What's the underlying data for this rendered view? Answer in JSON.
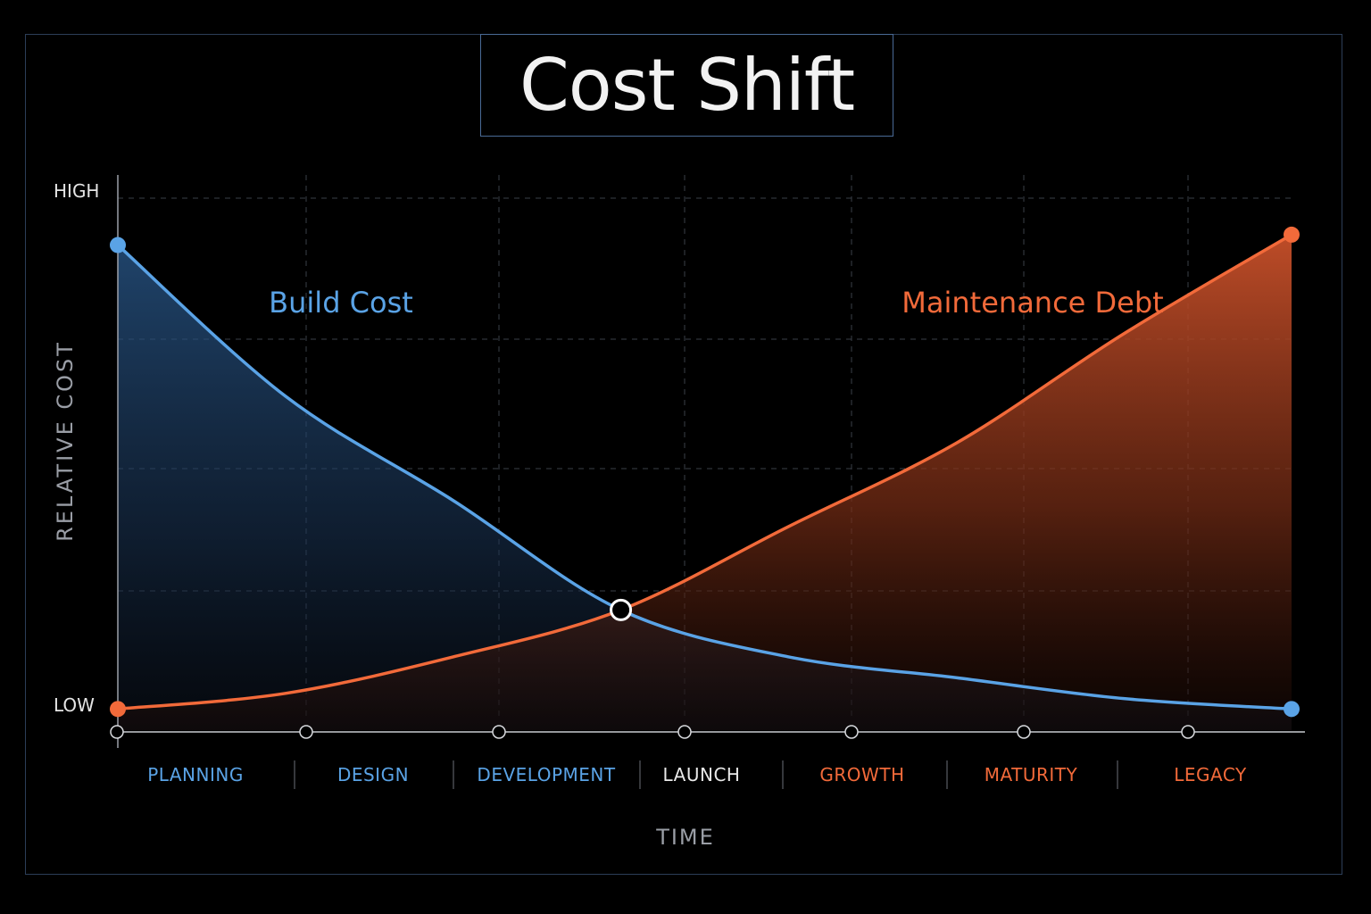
{
  "chart_data": {
    "type": "area",
    "title": "Cost Shift",
    "xlabel": "TIME",
    "ylabel": "RELATIVE COST",
    "y_tick_labels": [
      "HIGH",
      "LOW"
    ],
    "ylim": [
      0,
      1
    ],
    "grid": true,
    "categories": [
      "PLANNING",
      "DESIGN",
      "DEVELOPMENT",
      "LAUNCH",
      "GROWTH",
      "MATURITY",
      "LEGACY"
    ],
    "x": [
      0,
      1,
      2,
      3,
      4,
      5,
      6,
      7
    ],
    "series": [
      {
        "name": "Build Cost",
        "color": "#5aa3e6",
        "values": [
          0.91,
          0.62,
          0.42,
          0.21,
          0.12,
          0.08,
          0.04,
          0.02
        ]
      },
      {
        "name": "Maintenance Debt",
        "color": "#f26a3a",
        "values": [
          0.02,
          0.05,
          0.12,
          0.21,
          0.37,
          0.53,
          0.74,
          0.93
        ]
      }
    ],
    "crossover": {
      "x": 3,
      "y": 0.21
    },
    "phase_colors": [
      "#5aa3e6",
      "#5aa3e6",
      "#5aa3e6",
      "#e8e8e8",
      "#f26a3a",
      "#f26a3a",
      "#f26a3a"
    ]
  }
}
